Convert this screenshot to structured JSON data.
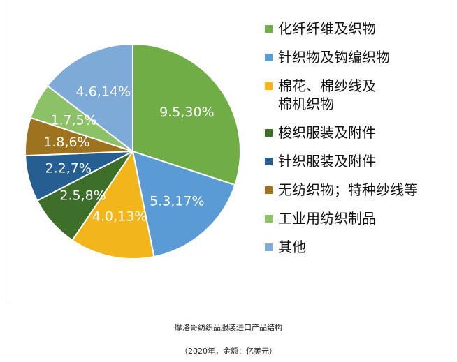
{
  "chart_data": {
    "type": "pie",
    "title": "摩洛哥纺织品服装进口产品结构",
    "subtitle": "（2020年，金额：亿美元）",
    "legend_position": "right",
    "slices": [
      {
        "name": "化纤纤维及织物",
        "value": 9.5,
        "percent": 30,
        "label": "9.5,30%",
        "color": "#70ad47"
      },
      {
        "name": "针织物及钩编织物",
        "value": 5.3,
        "percent": 17,
        "label": "5.3,17%",
        "color": "#5b9bd5"
      },
      {
        "name": "棉花、棉纱线及\n棉机织物",
        "value": 4.0,
        "percent": 13,
        "label": "4.0,13%",
        "color": "#f2b61a"
      },
      {
        "name": "梭织服装及附件",
        "value": 2.5,
        "percent": 8,
        "label": "2.5,8%",
        "color": "#3c6e2a"
      },
      {
        "name": "针织服装及附件",
        "value": 2.2,
        "percent": 7,
        "label": "2.2,7%",
        "color": "#255e91"
      },
      {
        "name": "无纺织物；特种纱线等",
        "value": 1.8,
        "percent": 6,
        "label": "1.8,6%",
        "color": "#9e7320"
      },
      {
        "name": "工业用纺织制品",
        "value": 1.7,
        "percent": 5,
        "label": "1.7,5%",
        "color": "#8cc168"
      },
      {
        "name": "其他",
        "value": 4.6,
        "percent": 14,
        "label": "4.6,14%",
        "color": "#7eaad7"
      }
    ]
  }
}
